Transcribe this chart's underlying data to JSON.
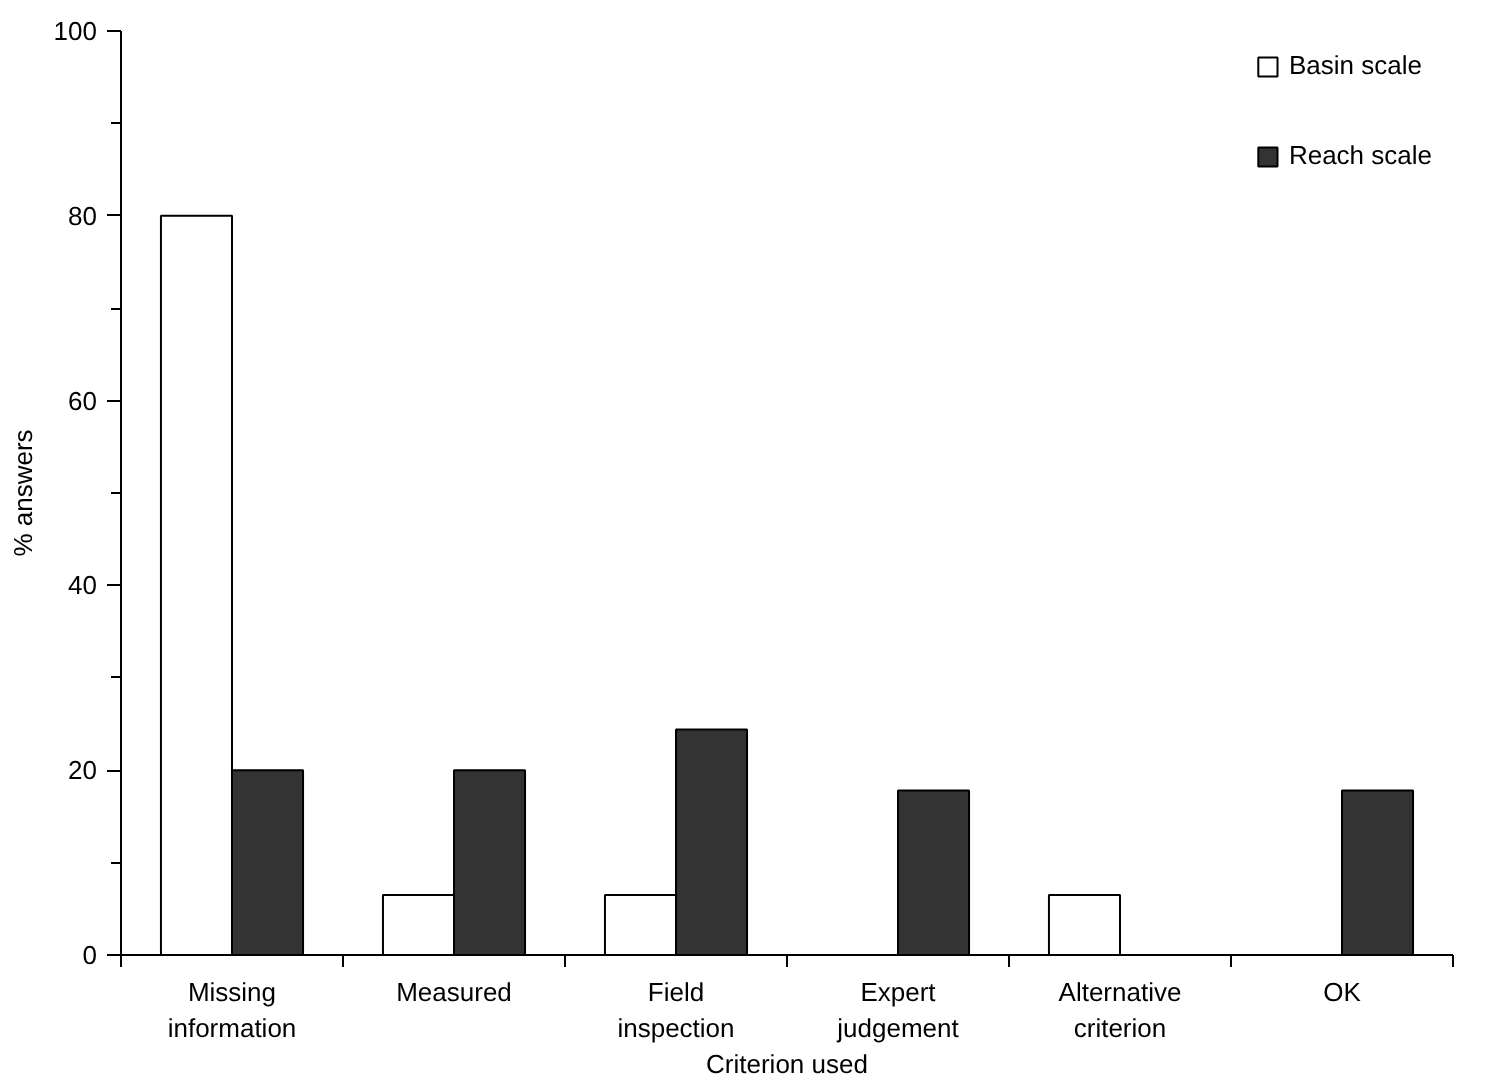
{
  "chart_data": {
    "type": "bar",
    "xlabel": "Criterion used",
    "ylabel": "% answers",
    "categories": [
      "Missing information",
      "Measured",
      "Field inspection",
      "Expert judgement",
      "Alternative criterion",
      "OK"
    ],
    "series": [
      {
        "name": "Basin scale",
        "color": "#ffffff",
        "values": [
          80,
          6.5,
          6.5,
          0,
          6.5,
          0
        ]
      },
      {
        "name": "Reach scale",
        "color": "#333333",
        "values": [
          20,
          20,
          24.4,
          17.8,
          0,
          17.8
        ]
      }
    ],
    "ylim": [
      0,
      100
    ],
    "yticks": [
      0,
      {
        "value": 10,
        "label": null
      },
      20,
      {
        "value": 30,
        "label": null
      },
      40,
      {
        "value": 50,
        "label": null
      },
      60,
      {
        "value": 70,
        "label": null
      },
      80,
      {
        "value": 90,
        "label": null
      },
      100
    ],
    "grid": false,
    "legend": "top right"
  }
}
